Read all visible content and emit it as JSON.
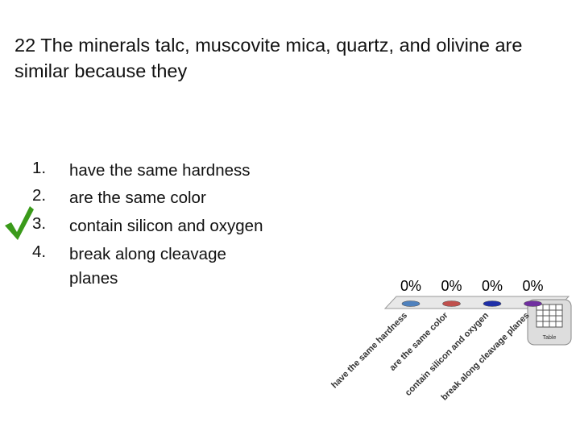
{
  "question": "22 The minerals talc, muscovite mica, quartz, and olivine are similar because they",
  "choices": [
    {
      "number": "1.",
      "text": "have the same hardness"
    },
    {
      "number": "2.",
      "text": "are the same color"
    },
    {
      "number": "3.",
      "text": "contain silicon and oxygen"
    },
    {
      "number": "4.",
      "text": "break along cleavage planes"
    }
  ],
  "table_button": "Table",
  "chart_data": {
    "type": "bar",
    "categories": [
      "have the same hardness",
      "are the same color",
      "contain silicon and oxygen",
      "break along cleavage planes"
    ],
    "series": [
      {
        "name": null,
        "colors": [
          "#4f81bd",
          "#c0504d",
          "#1f2fa8",
          "#7030a0"
        ],
        "values": [
          0,
          0,
          0,
          0
        ],
        "value_labels": [
          "0%",
          "0%",
          "0%",
          "0%"
        ]
      }
    ]
  }
}
